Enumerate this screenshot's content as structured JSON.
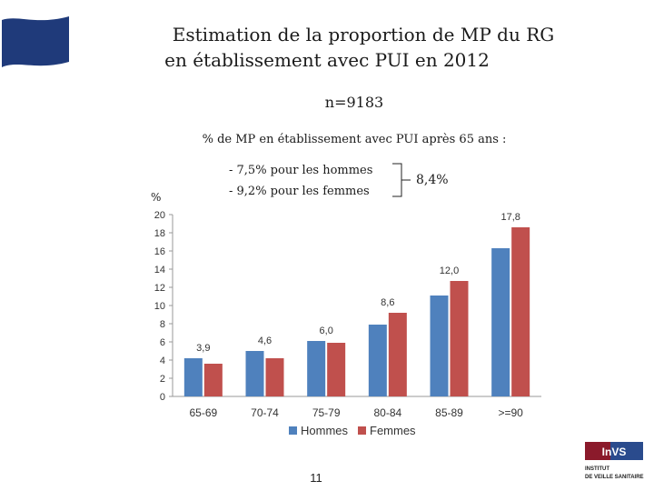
{
  "header": {
    "title_line1": "Estimation de la proportion de MP du RG",
    "title_line2": "en établissement avec PUI en 2012",
    "n": "n=9183"
  },
  "summary": {
    "subtitle": "% de MP en établissement avec PUI après 65 ans :",
    "bullet_hommes": "- 7,5%  pour les hommes",
    "bullet_femmes": "- 9,2% pour les femmes",
    "total": "8,4%"
  },
  "footer": {
    "page_number": "11"
  },
  "logo": {
    "text": "InVS",
    "caption_line1": "INSTITUT",
    "caption_line2": "DE VEILLE SANITAIRE"
  },
  "colors": {
    "hommes": "#4f81bd",
    "femmes": "#c0504d",
    "flag": "#1f3a7a"
  },
  "chart_data": {
    "type": "bar",
    "ylabel": "%",
    "ylim": [
      0,
      20
    ],
    "yticks": [
      0,
      2,
      4,
      6,
      8,
      10,
      12,
      14,
      16,
      18,
      20
    ],
    "categories": [
      "65-69",
      "70-74",
      "75-79",
      "80-84",
      "85-89",
      ">=90"
    ],
    "series": [
      {
        "name": "Hommes",
        "values": [
          4.2,
          5.0,
          6.1,
          7.9,
          11.1,
          16.3
        ]
      },
      {
        "name": "Femmes",
        "values": [
          3.6,
          4.2,
          5.9,
          9.2,
          12.7,
          18.6
        ]
      }
    ],
    "data_labels": [
      "3,9",
      "4,6",
      "6,0",
      "8,6",
      "12,0",
      "17,8"
    ],
    "legend_position": "bottom",
    "grid": false
  }
}
